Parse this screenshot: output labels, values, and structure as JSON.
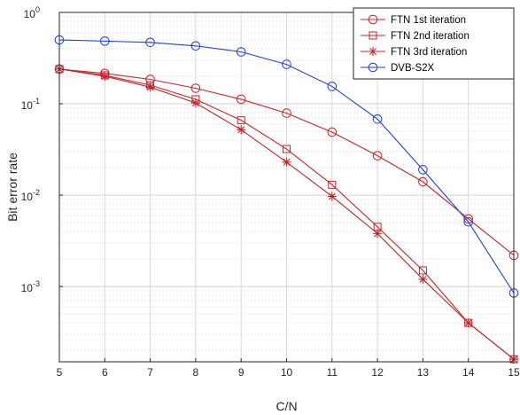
{
  "chart_data": {
    "type": "line",
    "xlabel": "C/N",
    "ylabel": "Bit error rate",
    "x": [
      5,
      6,
      7,
      8,
      9,
      10,
      11,
      12,
      13,
      14,
      15
    ],
    "xlim": [
      5,
      15
    ],
    "xticks": [
      "5",
      "6",
      "7",
      "8",
      "9",
      "10",
      "11",
      "12",
      "13",
      "14",
      "15"
    ],
    "yscale": "log",
    "ylim": [
      0.00015,
      1
    ],
    "yticks": [
      {
        "value": 1,
        "base": "10",
        "exp": "0"
      },
      {
        "value": 0.1,
        "base": "10",
        "exp": "-1"
      },
      {
        "value": 0.01,
        "base": "10",
        "exp": "-2"
      },
      {
        "value": 0.001,
        "base": "10",
        "exp": "-3"
      }
    ],
    "grid": true,
    "legend_position": "top-right",
    "series": [
      {
        "name": "FTN 1st iteration",
        "marker": "circle",
        "color": "#c0262c",
        "values": [
          0.24,
          0.215,
          0.185,
          0.148,
          0.112,
          0.079,
          0.049,
          0.027,
          0.014,
          0.0055,
          0.0022
        ]
      },
      {
        "name": "FTN 2nd iteration",
        "marker": "square",
        "color": "#c0262c",
        "values": [
          0.24,
          0.205,
          0.16,
          0.112,
          0.066,
          0.032,
          0.013,
          0.0045,
          0.0015,
          0.0004,
          0.00016
        ]
      },
      {
        "name": "FTN 3rd iteration",
        "marker": "star",
        "color": "#c0262c",
        "values": [
          0.24,
          0.2,
          0.152,
          0.102,
          0.052,
          0.023,
          0.0097,
          0.0038,
          0.0012,
          0.0004,
          0.00016
        ]
      },
      {
        "name": "DVB-S2X",
        "marker": "circle",
        "color": "#1f3fcc",
        "values": [
          0.5,
          0.485,
          0.47,
          0.43,
          0.37,
          0.27,
          0.155,
          0.068,
          0.019,
          0.0051,
          0.00085
        ]
      }
    ]
  }
}
